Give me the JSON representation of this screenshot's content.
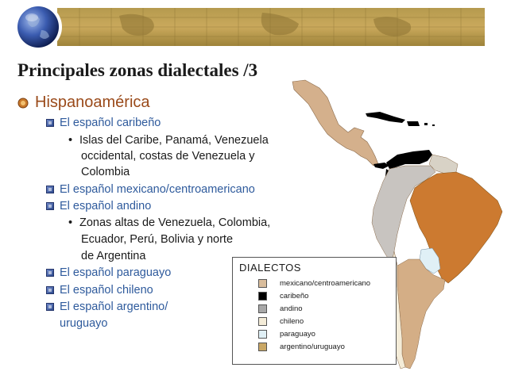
{
  "slide": {
    "title": "Principales zonas dialectales /3",
    "main_bullet": "Hispanoamérica",
    "items": [
      {
        "heading": "El español caribeño",
        "details": [
          "Islas del Caribe, Panamá, Venezuela",
          "occidental, costas de Venezuela y",
          "Colombia"
        ]
      },
      {
        "heading": "El español mexicano/centroamericano"
      },
      {
        "heading": "El español andino",
        "details": [
          "Zonas altas de Venezuela, Colombia,",
          "Ecuador, Perú, Bolivia y norte",
          "de Argentina"
        ]
      },
      {
        "heading": "El español paraguayo"
      },
      {
        "heading": "El español chileno"
      },
      {
        "heading": "El español argentino/",
        "heading_cont": "uruguayo"
      }
    ]
  },
  "legend": {
    "title": "DIALECTOS",
    "entries": [
      {
        "label": "mexicano/centroamericano",
        "color": "#d9bd9c"
      },
      {
        "label": "caribeño",
        "color": "#000000"
      },
      {
        "label": "andino",
        "color": "#a8a8a8"
      },
      {
        "label": "chileno",
        "color": "#f4ecd8"
      },
      {
        "label": "paraguayo",
        "color": "#e0f0f6"
      },
      {
        "label": "argentino/uruguayo",
        "color": "#c9a765"
      }
    ]
  },
  "map_colors": {
    "mexicano_centroamericano": "#d4b08c",
    "caribeno": "#000000",
    "andino": "#c8c4c0",
    "chileno": "#f4ecd8",
    "paraguayo": "#e0f0f6",
    "argentino_uruguayo": "#d4ae86",
    "brasil": "#cc7a30",
    "guayanas": "#d8d2c6"
  }
}
